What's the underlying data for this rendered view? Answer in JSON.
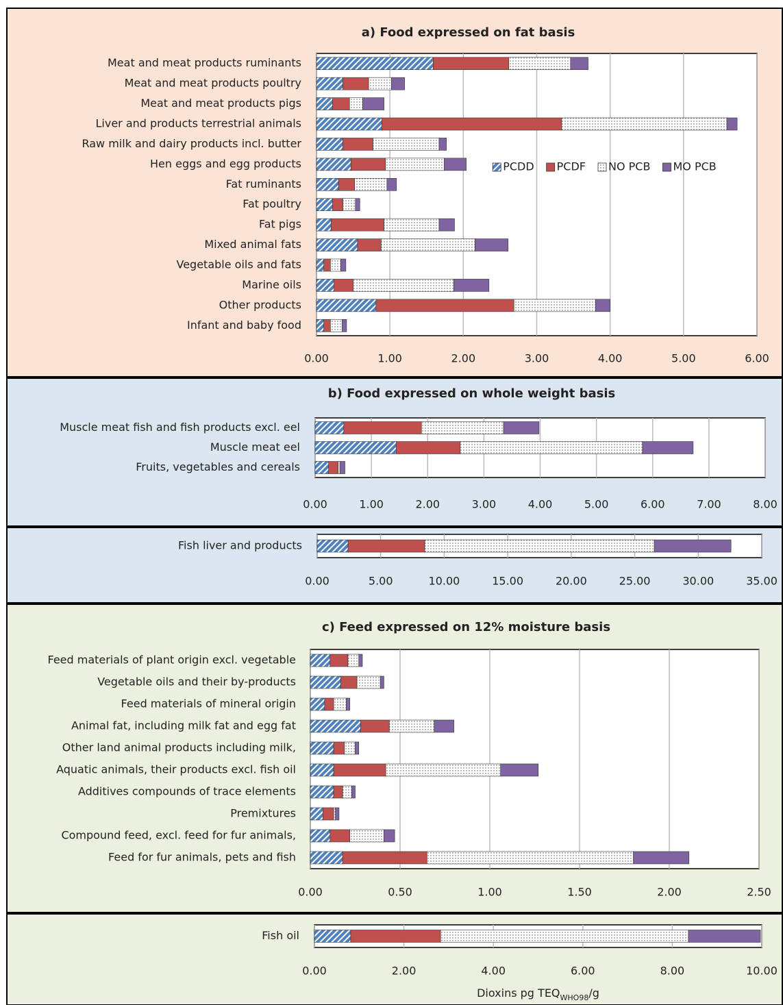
{
  "chart_data": [
    {
      "type": "bar",
      "orientation": "horizontal",
      "stacked": true,
      "grid": true,
      "legend": "center right",
      "title": "a) Food expressed on fat basis",
      "categories": [
        "Meat and meat products ruminants",
        "Meat and meat products poultry",
        "Meat and meat products pigs",
        "Liver and products terrestrial animals",
        "Raw milk and dairy products incl. butter",
        "Hen eggs and egg products",
        "Fat ruminants",
        "Fat poultry",
        "Fat pigs",
        "Mixed animal fats",
        "Vegetable oils and fats",
        "Marine oils",
        "Other products",
        "Infant and baby food"
      ],
      "series": [
        {
          "name": "PCDD",
          "color": "#4f81bd",
          "pattern": "hatch",
          "values": [
            1.59,
            0.36,
            0.22,
            0.89,
            0.36,
            0.47,
            0.3,
            0.22,
            0.2,
            0.56,
            0.1,
            0.24,
            0.81,
            0.1
          ]
        },
        {
          "name": "PCDF",
          "color": "#c0504d",
          "pattern": "solid",
          "values": [
            1.03,
            0.35,
            0.23,
            2.45,
            0.41,
            0.47,
            0.22,
            0.14,
            0.72,
            0.32,
            0.09,
            0.26,
            1.88,
            0.09
          ]
        },
        {
          "name": "NO PCB",
          "color": "#ffffff",
          "pattern": "dots",
          "values": [
            0.84,
            0.31,
            0.18,
            2.25,
            0.9,
            0.8,
            0.44,
            0.17,
            0.75,
            1.28,
            0.14,
            1.37,
            1.11,
            0.16
          ]
        },
        {
          "name": "MO PCB",
          "color": "#8064a2",
          "pattern": "solid",
          "values": [
            0.24,
            0.18,
            0.29,
            0.14,
            0.1,
            0.3,
            0.13,
            0.06,
            0.21,
            0.45,
            0.07,
            0.48,
            0.2,
            0.06
          ]
        }
      ],
      "xlim": [
        0,
        6
      ],
      "xticks": [
        {
          "value": 0,
          "label": "0.00"
        },
        {
          "value": 1,
          "label": "1.00"
        },
        {
          "value": 2,
          "label": "2.00"
        },
        {
          "value": 3,
          "label": "3.00"
        },
        {
          "value": 4,
          "label": "4.00"
        },
        {
          "value": 5,
          "label": "5.00"
        },
        {
          "value": 6,
          "label": "6.00"
        }
      ]
    },
    {
      "type": "bar",
      "orientation": "horizontal",
      "stacked": true,
      "grid": true,
      "title": "b) Food expressed on whole weight basis",
      "categories": [
        "Muscle meat fish and fish products excl. eel",
        "Muscle meat eel",
        "Fruits, vegetables and cereals"
      ],
      "series": [
        {
          "color": "#4f81bd",
          "pattern": "hatch",
          "values": [
            0.51,
            1.44,
            0.24
          ]
        },
        {
          "color": "#c0504d",
          "pattern": "solid",
          "values": [
            1.38,
            1.14,
            0.17
          ]
        },
        {
          "color": "#ffffff",
          "pattern": "dots",
          "values": [
            1.46,
            3.24,
            0.03
          ]
        },
        {
          "color": "#8064a2",
          "pattern": "solid",
          "values": [
            0.63,
            0.9,
            0.09
          ]
        }
      ],
      "xlim": [
        0,
        8
      ],
      "xticks": [
        {
          "value": 0,
          "label": "0.00"
        },
        {
          "value": 1,
          "label": "1.00"
        },
        {
          "value": 2,
          "label": "2.00"
        },
        {
          "value": 3,
          "label": "3.00"
        },
        {
          "value": 4,
          "label": "4.00"
        },
        {
          "value": 5,
          "label": "5.00"
        },
        {
          "value": 6,
          "label": "6.00"
        },
        {
          "value": 7,
          "label": "7.00"
        },
        {
          "value": 8,
          "label": "8.00"
        }
      ]
    },
    {
      "type": "bar",
      "orientation": "horizontal",
      "stacked": true,
      "grid": true,
      "categories": [
        "Fish liver and products"
      ],
      "series": [
        {
          "color": "#4f81bd",
          "pattern": "hatch",
          "values": [
            2.43
          ]
        },
        {
          "color": "#c0504d",
          "pattern": "solid",
          "values": [
            6.04
          ]
        },
        {
          "color": "#ffffff",
          "pattern": "dots",
          "values": [
            18.07
          ]
        },
        {
          "color": "#8064a2",
          "pattern": "solid",
          "values": [
            6.04
          ]
        }
      ],
      "xlim": [
        0,
        35
      ],
      "xticks": [
        {
          "value": 0,
          "label": "0.00"
        },
        {
          "value": 5,
          "label": "5.00"
        },
        {
          "value": 10,
          "label": "10.00"
        },
        {
          "value": 15,
          "label": "15.00"
        },
        {
          "value": 20,
          "label": "20.00"
        },
        {
          "value": 25,
          "label": "25.00"
        },
        {
          "value": 30,
          "label": "30.00"
        },
        {
          "value": 35,
          "label": "35.00"
        }
      ]
    },
    {
      "type": "bar",
      "orientation": "horizontal",
      "stacked": true,
      "grid": true,
      "title": "c) Feed expressed on 12% moisture basis",
      "categories": [
        "Feed materials of plant origin excl. vegetable",
        "Vegetable oils and their by-products",
        "Feed materials of mineral origin",
        "Animal fat, including milk fat and egg fat",
        "Other land animal products including milk,",
        "Aquatic animals, their products excl. fish oil",
        "Additives compounds of trace elements",
        "Premixtures",
        "Compound feed, excl. feed for fur animals,",
        "Feed for fur animals, pets and fish"
      ],
      "series": [
        {
          "color": "#4f81bd",
          "pattern": "hatch",
          "values": [
            0.11,
            0.17,
            0.08,
            0.28,
            0.13,
            0.13,
            0.13,
            0.07,
            0.11,
            0.18
          ]
        },
        {
          "color": "#c0504d",
          "pattern": "solid",
          "values": [
            0.1,
            0.09,
            0.05,
            0.16,
            0.06,
            0.29,
            0.05,
            0.06,
            0.11,
            0.47
          ]
        },
        {
          "color": "#ffffff",
          "pattern": "dots",
          "values": [
            0.06,
            0.13,
            0.07,
            0.25,
            0.06,
            0.64,
            0.05,
            0.01,
            0.19,
            1.15
          ]
        },
        {
          "color": "#8064a2",
          "pattern": "solid",
          "values": [
            0.02,
            0.02,
            0.02,
            0.11,
            0.02,
            0.21,
            0.02,
            0.02,
            0.06,
            0.31
          ]
        }
      ],
      "xlim": [
        0,
        2.5
      ],
      "xticks": [
        {
          "value": 0,
          "label": "0.00"
        },
        {
          "value": 0.5,
          "label": "0.50"
        },
        {
          "value": 1,
          "label": "1.00"
        },
        {
          "value": 1.5,
          "label": "1.50"
        },
        {
          "value": 2,
          "label": "2.00"
        },
        {
          "value": 2.5,
          "label": "2.50"
        }
      ]
    },
    {
      "type": "bar",
      "orientation": "horizontal",
      "stacked": true,
      "grid": true,
      "categories": [
        "Fish oil"
      ],
      "series": [
        {
          "color": "#4f81bd",
          "pattern": "hatch",
          "values": [
            0.81
          ]
        },
        {
          "color": "#c0504d",
          "pattern": "solid",
          "values": [
            2.01
          ]
        },
        {
          "color": "#ffffff",
          "pattern": "dots",
          "values": [
            5.54
          ]
        },
        {
          "color": "#8064a2",
          "pattern": "solid",
          "values": [
            1.61
          ]
        }
      ],
      "xlim": [
        0,
        10
      ],
      "xticks": [
        {
          "value": 0,
          "label": "0.00"
        },
        {
          "value": 2,
          "label": "2.00"
        },
        {
          "value": 4,
          "label": "4.00"
        },
        {
          "value": 6,
          "label": "6.00"
        },
        {
          "value": 8,
          "label": "8.00"
        },
        {
          "value": 10,
          "label": "10.00"
        }
      ],
      "xlabel": "Dioxins pg TEQ",
      "xlabel_sub": "WHO98",
      "xlabel_suffix": "/g"
    }
  ]
}
